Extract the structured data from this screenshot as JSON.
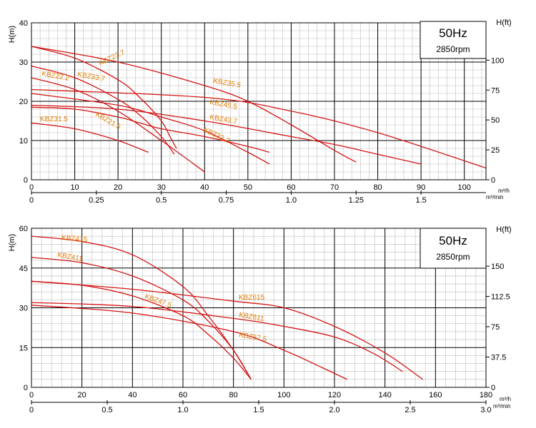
{
  "colors": {
    "curve": "#d41414",
    "label": "#e07a00",
    "frequency": "#d41414",
    "grid_major": "#000000",
    "grid_minor": "#bdbdbd"
  },
  "chart_data": [
    {
      "type": "line",
      "frequency": "50Hz",
      "speed": "2850rpm",
      "ylabel": "H(m)",
      "y2label": "H(ft)",
      "xunit": "m³/h",
      "x2unit": "m³/min",
      "xlim": [
        0,
        105
      ],
      "ylim": [
        0,
        40
      ],
      "x_ticks": [
        "0",
        "10",
        "20",
        "30",
        "40",
        "50",
        "60",
        "70",
        "80",
        "90",
        "100"
      ],
      "y_ticks": [
        "0",
        "10",
        "20",
        "30",
        "40"
      ],
      "x2_ticks": [
        "0",
        "0.25",
        "0.5",
        "0.75",
        "1.0",
        "1.25",
        "1.5"
      ],
      "y2_ticks": [
        "0",
        "25",
        "50",
        "75",
        "100"
      ],
      "series": [
        {
          "name": "KBZ23.7",
          "x": [
            0,
            10,
            20,
            25,
            30,
            32,
            33.5
          ],
          "y": [
            34,
            31,
            25.5,
            21,
            15,
            11,
            8
          ]
        },
        {
          "name": "KBZ33.7",
          "x": [
            0,
            10,
            20,
            25,
            30,
            33
          ],
          "y": [
            29,
            26,
            20.5,
            16.5,
            11,
            6.5
          ]
        },
        {
          "name": "KBZ22.2",
          "x": [
            0,
            10,
            20,
            30,
            40
          ],
          "y": [
            26,
            23,
            17.5,
            10,
            2
          ]
        },
        {
          "name": "KBZ35.5",
          "x": [
            0,
            20,
            40,
            50,
            60,
            70,
            75
          ],
          "y": [
            34,
            30,
            24,
            20,
            14,
            7.5,
            4.5
          ]
        },
        {
          "name": "KBZ45.5",
          "x": [
            0,
            40,
            60,
            80,
            105
          ],
          "y": [
            23,
            21,
            17.5,
            12,
            3
          ]
        },
        {
          "name": "KBZ43.7",
          "x": [
            0,
            20,
            40,
            60,
            70,
            80,
            90
          ],
          "y": [
            19,
            18,
            15,
            11,
            9,
            6.5,
            4
          ]
        },
        {
          "name": "KBZ32.2",
          "x": [
            0,
            20,
            30,
            40,
            50,
            55
          ],
          "y": [
            22,
            19,
            16,
            12.5,
            7,
            4
          ]
        },
        {
          "name": "KBZ21.5",
          "x": [
            0,
            10,
            20,
            25,
            30,
            40,
            50,
            55
          ],
          "y": [
            18.5,
            18,
            16,
            14.5,
            13,
            11,
            8.5,
            7
          ]
        },
        {
          "name": "KBZ31.5",
          "x": [
            0,
            10,
            20,
            27
          ],
          "y": [
            14.5,
            13,
            10,
            7
          ]
        }
      ]
    },
    {
      "type": "line",
      "frequency": "50Hz",
      "speed": "2850rpm",
      "ylabel": "H(m)",
      "y2label": "H(ft)",
      "xunit": "m³/h",
      "x2unit": "m³/min",
      "xlim": [
        0,
        180
      ],
      "ylim": [
        0,
        60
      ],
      "x_ticks": [
        "0",
        "20",
        "40",
        "60",
        "80",
        "100",
        "120",
        "140",
        "160",
        "180"
      ],
      "y_ticks": [
        "0",
        "15",
        "30",
        "45",
        "60"
      ],
      "x2_ticks": [
        "0",
        "0.5",
        "1.0",
        "1.5",
        "2.0",
        "2.5",
        "3.0"
      ],
      "y2_ticks": [
        "0",
        "37.5",
        "75",
        "112.5",
        "150"
      ],
      "series": [
        {
          "name": "KBZ415",
          "x": [
            0,
            20,
            40,
            60,
            70,
            80,
            87
          ],
          "y": [
            57,
            55,
            50,
            38,
            27,
            14,
            3
          ]
        },
        {
          "name": "KBZ411",
          "x": [
            0,
            20,
            40,
            60,
            70,
            80,
            87
          ],
          "y": [
            49,
            47,
            42,
            33,
            25,
            14,
            3
          ]
        },
        {
          "name": "KBZ47.5",
          "x": [
            0,
            20,
            40,
            60,
            70,
            80,
            87
          ],
          "y": [
            40,
            38.5,
            34.5,
            27,
            20,
            11,
            3
          ]
        },
        {
          "name": "KBZ615",
          "x": [
            0,
            40,
            80,
            100,
            120,
            140,
            155
          ],
          "y": [
            40,
            37,
            32.5,
            30,
            23,
            13,
            3
          ]
        },
        {
          "name": "KBZ611",
          "x": [
            0,
            40,
            80,
            100,
            120,
            135,
            147
          ],
          "y": [
            32,
            30.5,
            26,
            23,
            19,
            13,
            6
          ]
        },
        {
          "name": "KBZ67.5",
          "x": [
            0,
            40,
            80,
            100,
            115,
            125
          ],
          "y": [
            31,
            28,
            21,
            14,
            7.5,
            3
          ]
        }
      ]
    }
  ]
}
